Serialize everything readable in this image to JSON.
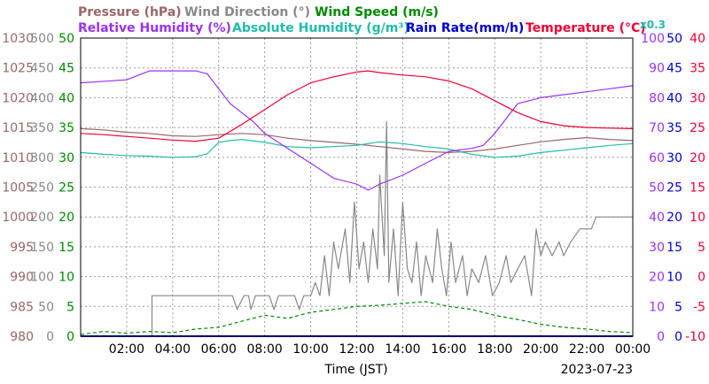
{
  "chart_data": {
    "type": "line",
    "x_unit": "hour of day (JST)",
    "x_range": [
      0,
      24
    ],
    "x_ticks": [
      "02:00",
      "04:00",
      "06:00",
      "08:00",
      "10:00",
      "12:00",
      "14:00",
      "16:00",
      "18:00",
      "20:00",
      "22:00",
      "00:00"
    ],
    "xlabel": "Time (JST)",
    "date": "2023-07-23",
    "grid": true,
    "legend": {
      "pressure": "Pressure (hPa)",
      "wind_dir": "Wind Direction (°)",
      "wind_speed": "Wind Speed (m/s)",
      "humidity": "Relative Humidity (%)",
      "abs_humidity": "Absolute Humidity (g/m³)",
      "rain_rate": "Rain Rate(mm/h)",
      "temperature": "Temperature (°C)",
      "rain_scale": "x0.3"
    },
    "axes": {
      "pressure": {
        "range": [
          980,
          1030
        ],
        "ticks": [
          "1030",
          "1025",
          "1020",
          "1015",
          "1010",
          "1005",
          "1000",
          "995",
          "990",
          "985",
          "980"
        ]
      },
      "wind_dir": {
        "range": [
          0,
          500
        ],
        "ticks": [
          "500",
          "450",
          "400",
          "350",
          "300",
          "250",
          "200",
          "150",
          "100",
          "50",
          "0"
        ]
      },
      "wind_speed": {
        "range": [
          0,
          50
        ],
        "ticks": [
          "50",
          "45",
          "40",
          "35",
          "30",
          "25",
          "20",
          "15",
          "10",
          "5",
          "0"
        ]
      },
      "humidity": {
        "range": [
          0,
          100
        ],
        "ticks": [
          "100",
          "90",
          "80",
          "70",
          "60",
          "50",
          "40",
          "30",
          "20",
          "10",
          "0"
        ]
      },
      "rain_rate": {
        "range": [
          0,
          50
        ],
        "ticks": [
          "50",
          "45",
          "40",
          "35",
          "30",
          "25",
          "20",
          "15",
          "10",
          "5",
          "0"
        ]
      },
      "temperature": {
        "range": [
          -10,
          40
        ],
        "ticks": [
          "40",
          "35",
          "30",
          "25",
          "20",
          "15",
          "10",
          "5",
          "0",
          "-5",
          "-10"
        ]
      }
    },
    "colors": {
      "pressure": "#996666",
      "wind_dir": "#888888",
      "wind_speed": "#008800",
      "humidity": "#9933ee",
      "abs_humidity": "#22bbaa",
      "rain_rate": "#0000cc",
      "temperature": "#ee0033",
      "grid": "#999999"
    },
    "series": [
      {
        "key": "pressure",
        "axis": "pressure",
        "style": "solid",
        "points": [
          [
            0,
            1014.8
          ],
          [
            1,
            1014.6
          ],
          [
            2,
            1014.2
          ],
          [
            3,
            1014.0
          ],
          [
            4,
            1013.6
          ],
          [
            5,
            1013.5
          ],
          [
            6,
            1013.8
          ],
          [
            7,
            1014.0
          ],
          [
            8,
            1013.8
          ],
          [
            9,
            1013.2
          ],
          [
            10,
            1012.8
          ],
          [
            11,
            1012.5
          ],
          [
            12,
            1012.2
          ],
          [
            13,
            1011.8
          ],
          [
            14,
            1011.4
          ],
          [
            15,
            1011.0
          ],
          [
            16,
            1010.8
          ],
          [
            17,
            1011.0
          ],
          [
            18,
            1011.4
          ],
          [
            19,
            1012.0
          ],
          [
            20,
            1012.6
          ],
          [
            21,
            1013.0
          ],
          [
            22,
            1013.3
          ],
          [
            23,
            1013.0
          ],
          [
            24,
            1012.8
          ]
        ]
      },
      {
        "key": "abs_humidity",
        "axis": "pressure",
        "style": "solid",
        "points": [
          [
            0,
            1010.8
          ],
          [
            1,
            1010.5
          ],
          [
            2,
            1010.3
          ],
          [
            3,
            1010.2
          ],
          [
            4,
            1010.0
          ],
          [
            5,
            1010.1
          ],
          [
            5.5,
            1010.6
          ],
          [
            6,
            1012.5
          ],
          [
            6.5,
            1012.8
          ],
          [
            7,
            1013.0
          ],
          [
            8,
            1012.5
          ],
          [
            9,
            1011.8
          ],
          [
            10,
            1011.6
          ],
          [
            11,
            1011.8
          ],
          [
            12,
            1012.0
          ],
          [
            13,
            1012.6
          ],
          [
            14,
            1012.3
          ],
          [
            15,
            1011.8
          ],
          [
            16,
            1011.4
          ],
          [
            17,
            1010.5
          ],
          [
            18,
            1010.0
          ],
          [
            19,
            1010.2
          ],
          [
            20,
            1010.8
          ],
          [
            21,
            1011.2
          ],
          [
            22,
            1011.6
          ],
          [
            23,
            1012.0
          ],
          [
            24,
            1012.3
          ]
        ]
      },
      {
        "key": "humidity",
        "axis": "humidity",
        "style": "solid",
        "points": [
          [
            0,
            85
          ],
          [
            2,
            86
          ],
          [
            3,
            89
          ],
          [
            4,
            89
          ],
          [
            5,
            89
          ],
          [
            5.5,
            88
          ],
          [
            6,
            83
          ],
          [
            6.5,
            78
          ],
          [
            7,
            75
          ],
          [
            7.5,
            72
          ],
          [
            8,
            68
          ],
          [
            9,
            63
          ],
          [
            10,
            58
          ],
          [
            11,
            53
          ],
          [
            12,
            51
          ],
          [
            12.5,
            49
          ],
          [
            13,
            51
          ],
          [
            14,
            54
          ],
          [
            15,
            58
          ],
          [
            16,
            62
          ],
          [
            17,
            63
          ],
          [
            17.5,
            64
          ],
          [
            18,
            68
          ],
          [
            18.5,
            73
          ],
          [
            19,
            78
          ],
          [
            20,
            80
          ],
          [
            21,
            81
          ],
          [
            22,
            82
          ],
          [
            23,
            83
          ],
          [
            24,
            84
          ]
        ]
      },
      {
        "key": "temperature",
        "axis": "temperature",
        "style": "solid",
        "points": [
          [
            0,
            24.0
          ],
          [
            1,
            23.8
          ],
          [
            2,
            23.5
          ],
          [
            3,
            23.2
          ],
          [
            4,
            22.9
          ],
          [
            5,
            22.7
          ],
          [
            6,
            23.2
          ],
          [
            7,
            25.5
          ],
          [
            8,
            28.0
          ],
          [
            9,
            30.5
          ],
          [
            10,
            32.5
          ],
          [
            11,
            33.5
          ],
          [
            12,
            34.3
          ],
          [
            12.5,
            34.5
          ],
          [
            13,
            34.2
          ],
          [
            14,
            33.8
          ],
          [
            15,
            33.5
          ],
          [
            16,
            32.8
          ],
          [
            17,
            31.5
          ],
          [
            18,
            29.5
          ],
          [
            19,
            27.5
          ],
          [
            20,
            26.0
          ],
          [
            21,
            25.3
          ],
          [
            22,
            25.0
          ],
          [
            23,
            24.9
          ],
          [
            24,
            24.8
          ]
        ]
      },
      {
        "key": "wind_dir",
        "axis": "wind_dir",
        "style": "step",
        "points": [
          [
            0,
            0
          ],
          [
            3.1,
            0
          ],
          [
            3.1,
            68
          ],
          [
            6.6,
            68
          ],
          [
            6.8,
            45
          ],
          [
            7.1,
            68
          ],
          [
            7.3,
            68
          ],
          [
            7.4,
            45
          ],
          [
            7.6,
            68
          ],
          [
            8.2,
            68
          ],
          [
            8.4,
            45
          ],
          [
            8.6,
            68
          ],
          [
            9.3,
            68
          ],
          [
            9.5,
            45
          ],
          [
            9.7,
            68
          ],
          [
            10.0,
            68
          ],
          [
            10.2,
            90
          ],
          [
            10.4,
            68
          ],
          [
            10.6,
            135
          ],
          [
            10.8,
            68
          ],
          [
            11.0,
            158
          ],
          [
            11.2,
            113
          ],
          [
            11.5,
            180
          ],
          [
            11.7,
            90
          ],
          [
            11.9,
            225
          ],
          [
            12.1,
            113
          ],
          [
            12.3,
            158
          ],
          [
            12.5,
            90
          ],
          [
            12.7,
            180
          ],
          [
            12.9,
            113
          ],
          [
            13.0,
            270
          ],
          [
            13.2,
            135
          ],
          [
            13.3,
            360
          ],
          [
            13.4,
            90
          ],
          [
            13.6,
            180
          ],
          [
            13.8,
            68
          ],
          [
            14.0,
            225
          ],
          [
            14.2,
            113
          ],
          [
            14.4,
            90
          ],
          [
            14.6,
            158
          ],
          [
            14.8,
            68
          ],
          [
            15.0,
            135
          ],
          [
            15.3,
            90
          ],
          [
            15.5,
            180
          ],
          [
            15.7,
            113
          ],
          [
            15.9,
            68
          ],
          [
            16.1,
            158
          ],
          [
            16.3,
            90
          ],
          [
            16.6,
            135
          ],
          [
            16.8,
            68
          ],
          [
            17.0,
            113
          ],
          [
            17.3,
            90
          ],
          [
            17.6,
            135
          ],
          [
            17.9,
            68
          ],
          [
            18.2,
            90
          ],
          [
            18.5,
            135
          ],
          [
            18.7,
            90
          ],
          [
            19.0,
            113
          ],
          [
            19.3,
            135
          ],
          [
            19.6,
            68
          ],
          [
            19.8,
            180
          ],
          [
            20.0,
            135
          ],
          [
            20.2,
            158
          ],
          [
            20.5,
            135
          ],
          [
            20.8,
            158
          ],
          [
            21.0,
            135
          ],
          [
            21.3,
            158
          ],
          [
            21.7,
            180
          ],
          [
            22.2,
            180
          ],
          [
            22.4,
            200
          ],
          [
            24,
            200
          ]
        ]
      },
      {
        "key": "wind_speed",
        "axis": "wind_speed",
        "style": "dashed",
        "points": [
          [
            0,
            0.3
          ],
          [
            1,
            0.8
          ],
          [
            2,
            0.5
          ],
          [
            3,
            0.8
          ],
          [
            4,
            0.6
          ],
          [
            5,
            1.2
          ],
          [
            6,
            1.5
          ],
          [
            7,
            2.5
          ],
          [
            8,
            3.5
          ],
          [
            9,
            3.0
          ],
          [
            10,
            4.0
          ],
          [
            11,
            4.5
          ],
          [
            12,
            5.0
          ],
          [
            13,
            5.2
          ],
          [
            14,
            5.5
          ],
          [
            15,
            5.8
          ],
          [
            16,
            5.0
          ],
          [
            17,
            4.5
          ],
          [
            18,
            3.5
          ],
          [
            19,
            2.8
          ],
          [
            20,
            2.0
          ],
          [
            21,
            1.5
          ],
          [
            22,
            1.2
          ],
          [
            23,
            0.8
          ],
          [
            24,
            0.6
          ]
        ]
      },
      {
        "key": "rain_rate",
        "axis": "rain_rate",
        "style": "solid",
        "points": [
          [
            0,
            0
          ],
          [
            24,
            0
          ]
        ]
      }
    ]
  }
}
